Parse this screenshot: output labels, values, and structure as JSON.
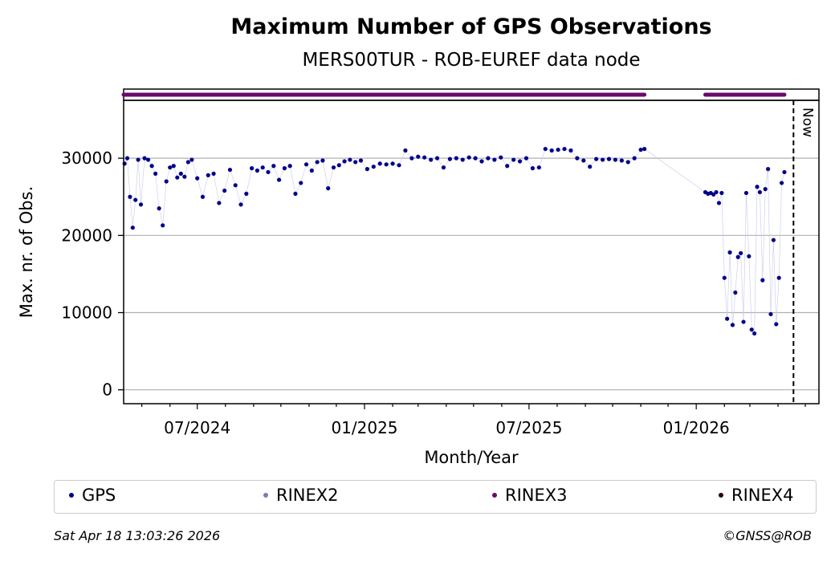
{
  "chart_data": {
    "type": "scatter",
    "title": "Maximum Number of GPS Observations",
    "subtitle": "MERS00TUR - ROB-EUREF data node",
    "xlabel": "Month/Year",
    "ylabel": "Max. nr. of Obs.",
    "x_ticks": [
      "07/2024",
      "01/2025",
      "07/2025",
      "01/2026"
    ],
    "y_ticks": [
      0,
      10000,
      20000,
      30000
    ],
    "ylim": [
      -1800,
      37500
    ],
    "xlim": [
      "2024-04-11",
      "2026-05-16"
    ],
    "grid": "horizontal",
    "now_label": "Now",
    "now_date": "2026-04-18",
    "rinex3_availability": [
      {
        "start": "2024-04-11",
        "end": "2025-11-05"
      },
      {
        "start": "2026-01-11",
        "end": "2026-04-08"
      }
    ],
    "series": [
      {
        "name": "GPS",
        "color": "#00008b",
        "x": [
          "2024-04-12",
          "2024-04-15",
          "2024-04-18",
          "2024-04-21",
          "2024-04-24",
          "2024-04-27",
          "2024-04-30",
          "2024-05-04",
          "2024-05-08",
          "2024-05-12",
          "2024-05-16",
          "2024-05-20",
          "2024-05-24",
          "2024-05-28",
          "2024-06-01",
          "2024-06-05",
          "2024-06-09",
          "2024-06-13",
          "2024-06-17",
          "2024-06-21",
          "2024-06-25",
          "2024-07-01",
          "2024-07-07",
          "2024-07-13",
          "2024-07-19",
          "2024-07-25",
          "2024-07-31",
          "2024-08-06",
          "2024-08-12",
          "2024-08-18",
          "2024-08-24",
          "2024-08-30",
          "2024-09-05",
          "2024-09-11",
          "2024-09-17",
          "2024-09-23",
          "2024-09-29",
          "2024-10-05",
          "2024-10-11",
          "2024-10-17",
          "2024-10-23",
          "2024-10-29",
          "2024-11-04",
          "2024-11-10",
          "2024-11-16",
          "2024-11-22",
          "2024-11-28",
          "2024-12-04",
          "2024-12-10",
          "2024-12-16",
          "2024-12-22",
          "2024-12-28",
          "2025-01-04",
          "2025-01-11",
          "2025-01-18",
          "2025-01-25",
          "2025-02-01",
          "2025-02-08",
          "2025-02-15",
          "2025-02-22",
          "2025-03-01",
          "2025-03-08",
          "2025-03-15",
          "2025-03-22",
          "2025-03-29",
          "2025-04-05",
          "2025-04-12",
          "2025-04-19",
          "2025-04-26",
          "2025-05-03",
          "2025-05-10",
          "2025-05-17",
          "2025-05-24",
          "2025-05-31",
          "2025-06-07",
          "2025-06-14",
          "2025-06-21",
          "2025-06-28",
          "2025-07-05",
          "2025-07-12",
          "2025-07-19",
          "2025-07-26",
          "2025-08-02",
          "2025-08-09",
          "2025-08-16",
          "2025-08-23",
          "2025-08-30",
          "2025-09-06",
          "2025-09-13",
          "2025-09-20",
          "2025-09-27",
          "2025-10-04",
          "2025-10-11",
          "2025-10-18",
          "2025-10-25",
          "2025-11-01",
          "2025-11-05",
          "2026-01-11",
          "2026-01-14",
          "2026-01-17",
          "2026-01-20",
          "2026-01-23",
          "2026-01-26",
          "2026-01-29",
          "2026-02-01",
          "2026-02-04",
          "2026-02-07",
          "2026-02-10",
          "2026-02-13",
          "2026-02-16",
          "2026-02-19",
          "2026-02-22",
          "2026-02-25",
          "2026-02-28",
          "2026-03-03",
          "2026-03-06",
          "2026-03-09",
          "2026-03-12",
          "2026-03-15",
          "2026-03-18",
          "2026-03-21",
          "2026-03-24",
          "2026-03-27",
          "2026-03-30",
          "2026-04-02",
          "2026-04-05",
          "2026-04-08"
        ],
        "y": [
          29300,
          30000,
          25000,
          21000,
          24600,
          29800,
          24000,
          30000,
          29800,
          29000,
          28000,
          23500,
          21300,
          27000,
          28800,
          29000,
          27500,
          28000,
          27600,
          29500,
          29800,
          27400,
          25000,
          27800,
          28000,
          24200,
          25800,
          28500,
          26500,
          24000,
          25400,
          28700,
          28400,
          28800,
          28200,
          29000,
          27200,
          28700,
          29000,
          25400,
          26800,
          29200,
          28400,
          29500,
          29700,
          26100,
          28800,
          29100,
          29600,
          29800,
          29500,
          29700,
          28600,
          28900,
          29300,
          29200,
          29300,
          29100,
          31000,
          30000,
          30200,
          30100,
          29800,
          30000,
          28800,
          29900,
          30000,
          29800,
          30100,
          30000,
          29600,
          30000,
          29800,
          30100,
          29000,
          29800,
          29600,
          30000,
          28700,
          28800,
          31200,
          31000,
          31100,
          31200,
          31000,
          30000,
          29700,
          28900,
          29900,
          29800,
          29900,
          29800,
          29700,
          29500,
          30000,
          31100,
          31200,
          25600,
          25400,
          25500,
          25300,
          25600,
          24200,
          25500,
          14500,
          9200,
          17800,
          8400,
          12600,
          17200,
          17700,
          8800,
          25500,
          17300,
          7800,
          7300,
          26300,
          25600,
          14200,
          26000,
          28600,
          9800,
          19400,
          8500,
          14500,
          26800,
          28200
        ],
        "marker": "circle"
      },
      {
        "name": "RINEX2",
        "color": "#7b7bb5",
        "marker": "circle"
      },
      {
        "name": "RINEX3",
        "color": "#6a0a6a",
        "marker": "circle"
      },
      {
        "name": "RINEX4",
        "color": "#2a0020",
        "marker": "circle"
      }
    ]
  },
  "footer": {
    "timestamp": "Sat Apr 18 13:03:26 2026",
    "credit": "©GNSS@ROB"
  }
}
